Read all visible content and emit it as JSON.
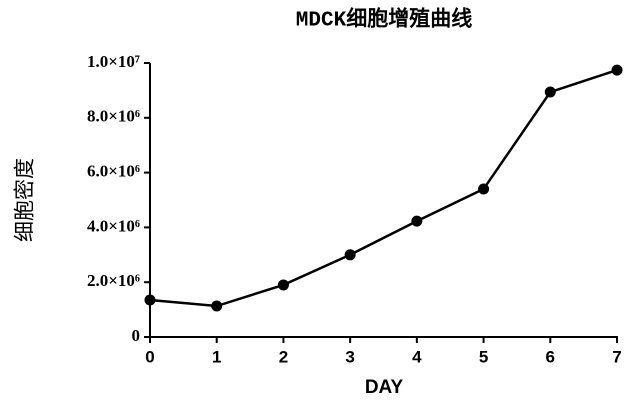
{
  "chart_data": {
    "type": "line",
    "title": "MDCK细胞增殖曲线",
    "x_label": "DAY",
    "y_label": "细胞密度",
    "x": [
      0,
      1,
      2,
      3,
      4,
      5,
      6,
      7
    ],
    "series": [
      {
        "name": "MDCK",
        "color": "#000000",
        "values": [
          1350000,
          1130000,
          1900000,
          3000000,
          4230000,
          5400000,
          8940000,
          9740000
        ]
      }
    ],
    "xlim": [
      0,
      7
    ],
    "xticks": [
      0,
      1,
      2,
      3,
      4,
      5,
      6,
      7
    ],
    "ylim": [
      0,
      10000000
    ],
    "yticks": [
      0,
      {
        "value": 2000000,
        "label": "2.0×10⁶"
      },
      {
        "value": 4000000,
        "label": "4.0×10⁶"
      },
      {
        "value": 6000000,
        "label": "6.0×10⁶"
      },
      {
        "value": 8000000,
        "label": "8.0×10⁶"
      },
      {
        "value": 10000000,
        "label": "1.0×10⁷"
      }
    ],
    "grid": false
  }
}
